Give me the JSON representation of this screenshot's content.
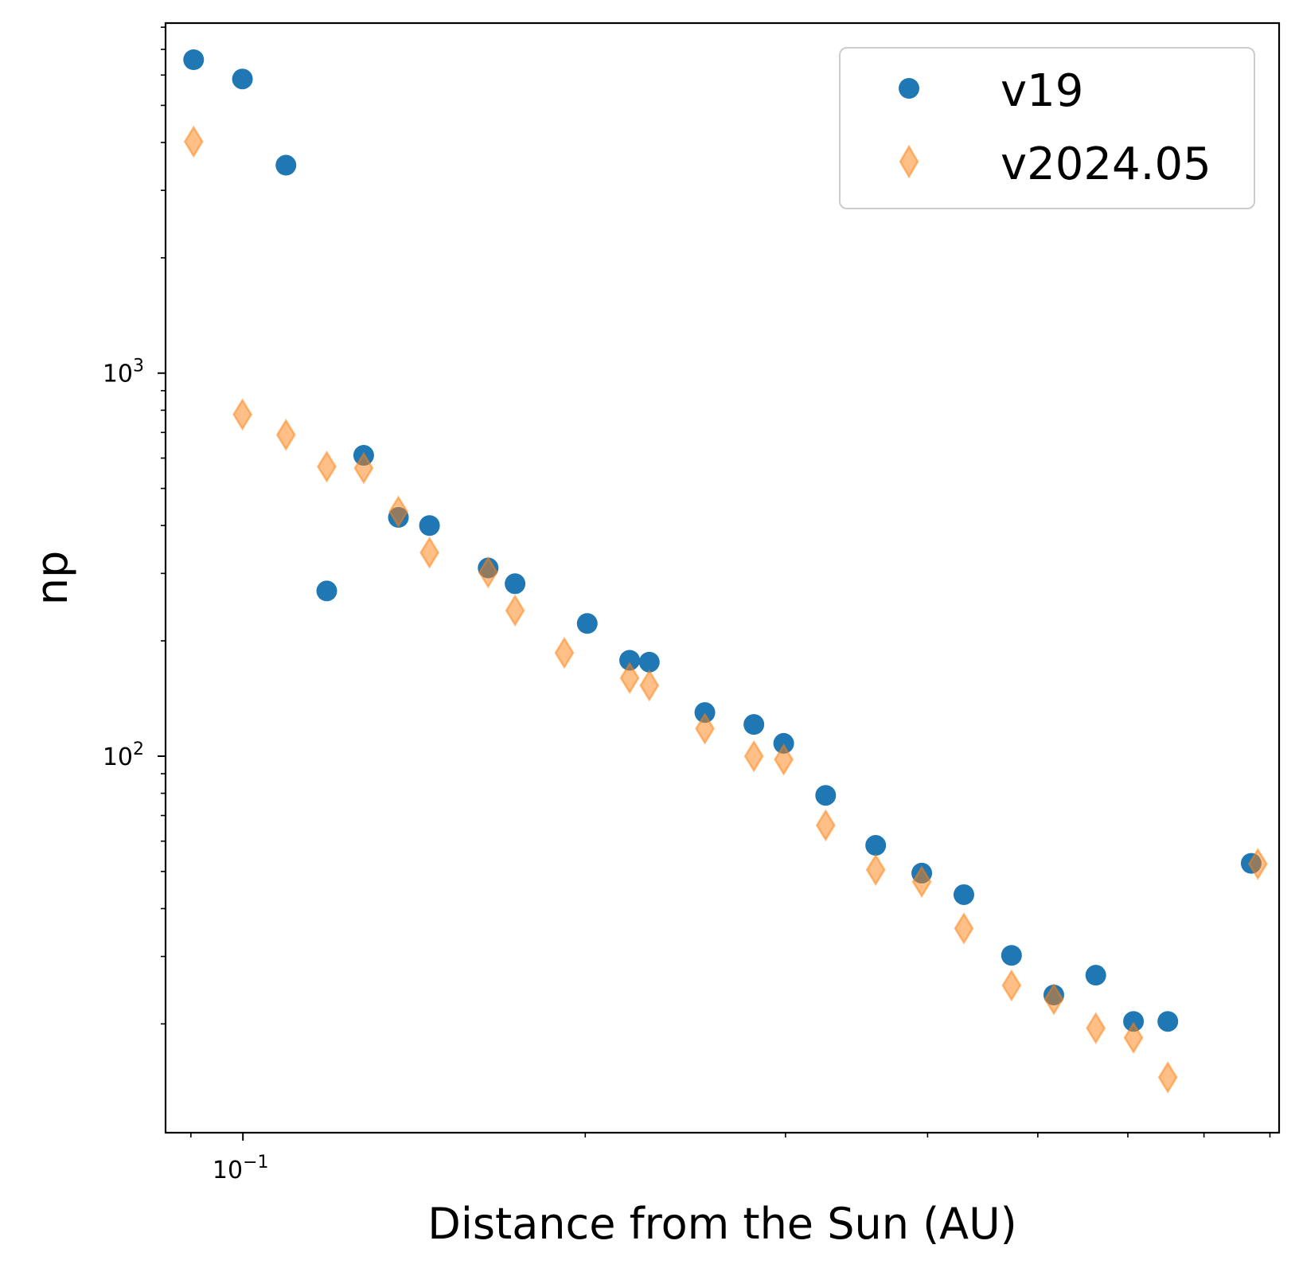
{
  "chart_data": {
    "type": "scatter",
    "xscale": "log",
    "yscale": "log",
    "xlim": [
      0.0855,
      0.815
    ],
    "ylim": [
      10.4,
      8200
    ],
    "xlabel": "Distance from the Sun (AU)",
    "ylabel": "np",
    "x_major_ticks": [
      {
        "value": 0.1,
        "base": "10",
        "exp": "−1"
      }
    ],
    "y_major_ticks": [
      {
        "value": 100,
        "base": "10",
        "exp": "2"
      },
      {
        "value": 1000,
        "base": "10",
        "exp": "3"
      }
    ],
    "legend": {
      "position": "upper right"
    },
    "series": [
      {
        "name": "v19",
        "marker": "circle",
        "color": "#1f77b4",
        "points": [
          [
            0.0905,
            6580
          ],
          [
            0.0999,
            5860
          ],
          [
            0.1091,
            3490
          ],
          [
            0.1185,
            270
          ],
          [
            0.1277,
            610
          ],
          [
            0.137,
            420
          ],
          [
            0.1459,
            400
          ],
          [
            0.1643,
            310
          ],
          [
            0.1735,
            282
          ],
          [
            0.2008,
            222
          ],
          [
            0.2188,
            178
          ],
          [
            0.2277,
            176
          ],
          [
            0.2548,
            130
          ],
          [
            0.2814,
            121
          ],
          [
            0.2989,
            108
          ],
          [
            0.3254,
            79
          ],
          [
            0.3601,
            58.5
          ],
          [
            0.3953,
            49.5
          ],
          [
            0.4305,
            43.5
          ],
          [
            0.4741,
            30.2
          ],
          [
            0.5165,
            23.8
          ],
          [
            0.5623,
            26.8
          ],
          [
            0.6069,
            20.3
          ],
          [
            0.6506,
            20.3
          ],
          [
            0.7702,
            52.5
          ]
        ]
      },
      {
        "name": "v2024.05",
        "marker": "thin_diamond",
        "color": "#ff7f0e",
        "alpha": 0.5,
        "points": [
          [
            0.0905,
            4020
          ],
          [
            0.0999,
            780
          ],
          [
            0.1091,
            690
          ],
          [
            0.1185,
            570
          ],
          [
            0.1277,
            565
          ],
          [
            0.137,
            435
          ],
          [
            0.1459,
            340
          ],
          [
            0.1643,
            302
          ],
          [
            0.1735,
            240
          ],
          [
            0.1917,
            186
          ],
          [
            0.2188,
            160
          ],
          [
            0.2277,
            153
          ],
          [
            0.2548,
            118
          ],
          [
            0.2814,
            100
          ],
          [
            0.2989,
            98
          ],
          [
            0.3254,
            66
          ],
          [
            0.3601,
            50.5
          ],
          [
            0.3953,
            47
          ],
          [
            0.4305,
            35.5
          ],
          [
            0.4741,
            25.2
          ],
          [
            0.5165,
            23.2
          ],
          [
            0.5623,
            19.5
          ],
          [
            0.6069,
            18.4
          ],
          [
            0.6506,
            14.5
          ],
          [
            0.7807,
            52.3
          ]
        ]
      }
    ]
  }
}
